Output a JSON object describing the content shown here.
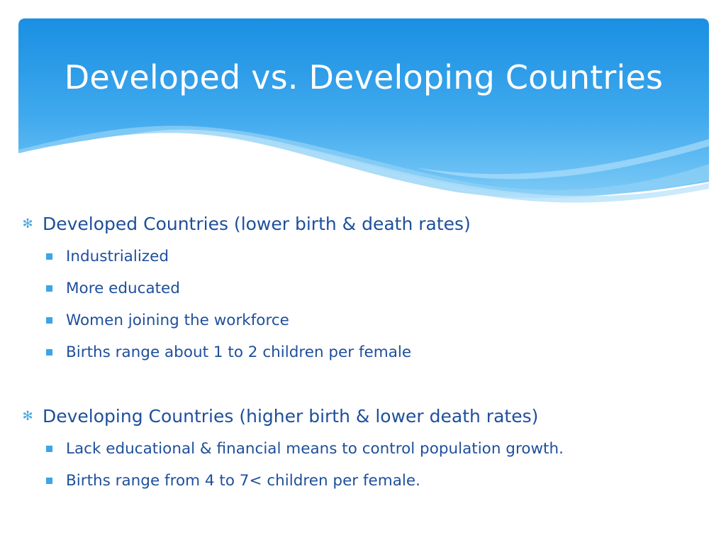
{
  "slide": {
    "title": "Developed vs. Developing Countries",
    "colors": {
      "header_top": "#1a8fe2",
      "header_bottom": "#7ccaf6",
      "text": "#1e4f9c",
      "bullet": "#3aa6e8"
    }
  },
  "bullets": [
    {
      "text": "Developed Countries (lower birth & death rates)",
      "sub": [
        "Industrialized",
        "More educated",
        "Women joining the workforce",
        "Births range about 1 to 2 children per female"
      ]
    },
    {
      "text": "Developing Countries (higher birth & lower death rates)",
      "sub": [
        "Lack educational & financial means to control population growth.",
        "Births range from 4 to 7< children per female."
      ]
    }
  ]
}
